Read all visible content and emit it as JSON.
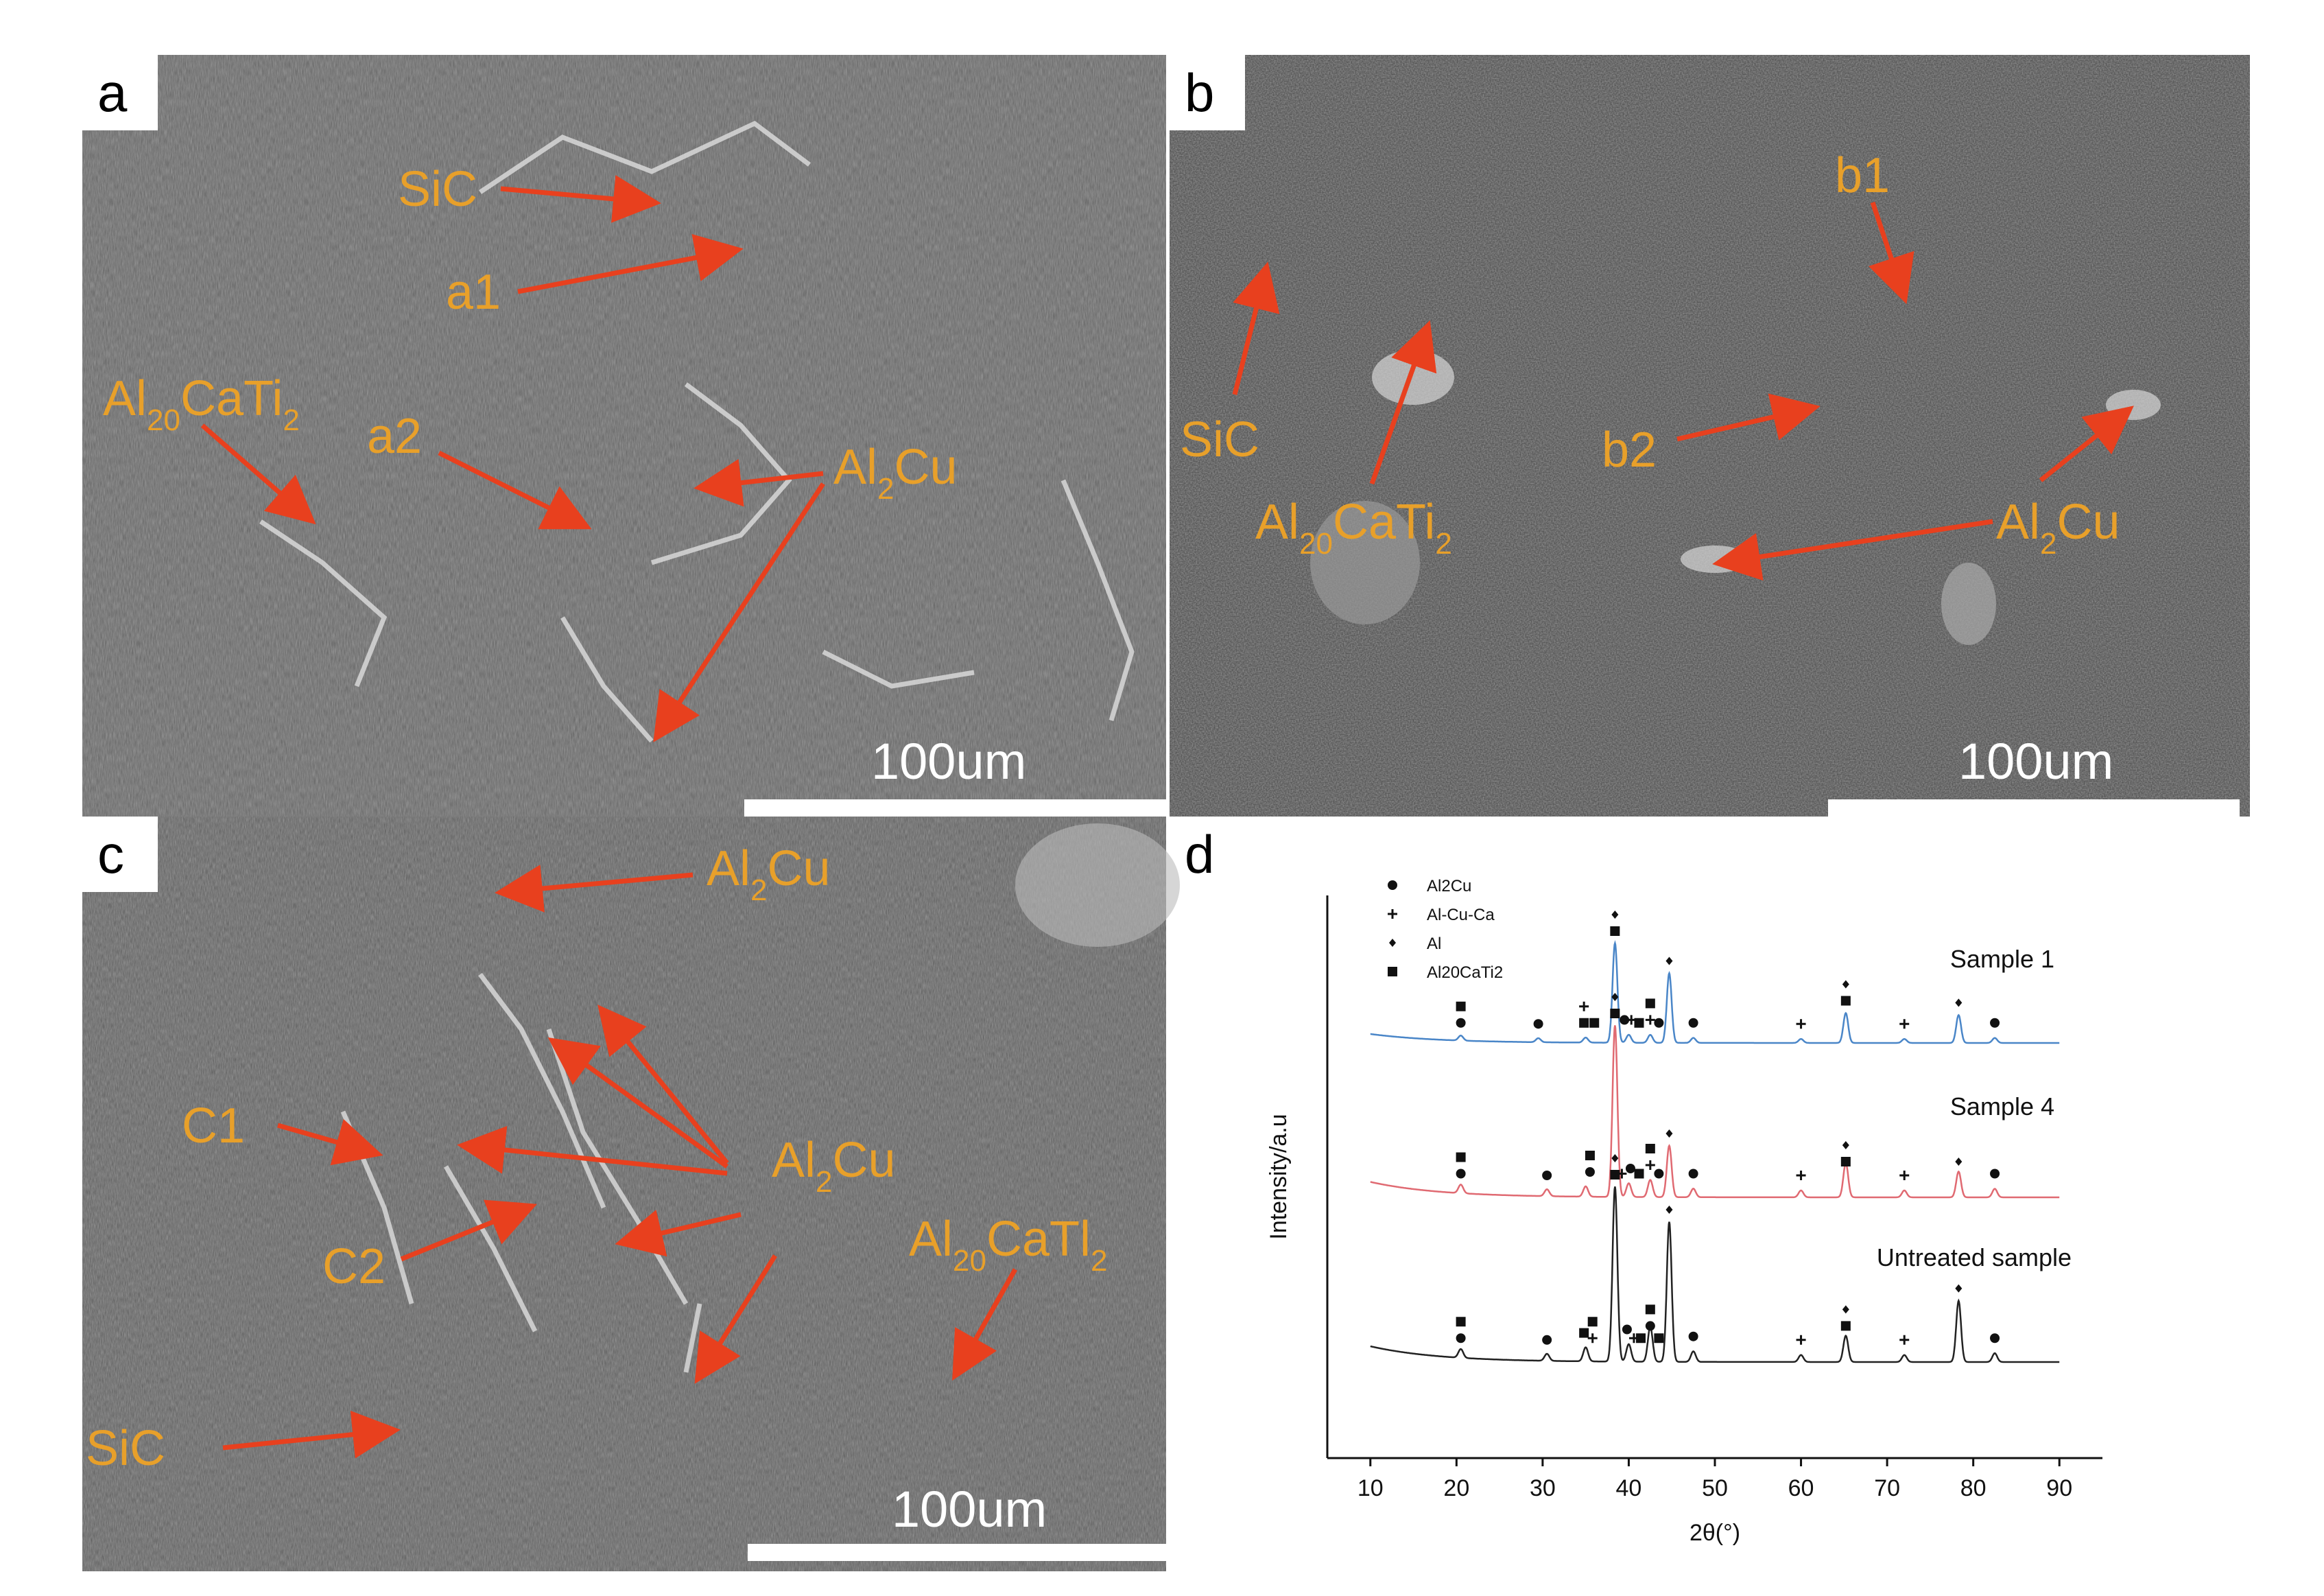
{
  "panels": {
    "a": {
      "letter": "a",
      "scale_bar": "100um",
      "labels": {
        "sic": "SiC",
        "a1": "a1",
        "a2": "a2",
        "al20_main": "Al",
        "al20_sub": "20",
        "al20_tail": "CaTi",
        "al20_sub2": "2",
        "al2cu_main": "Al",
        "al2cu_sub": "2",
        "al2cu_tail": "Cu"
      }
    },
    "b": {
      "letter": "b",
      "scale_bar": "100um",
      "labels": {
        "sic": "SiC",
        "b1": "b1",
        "b2": "b2",
        "al20_main": "Al",
        "al20_sub": "20",
        "al20_tail": "CaTi",
        "al20_sub2": "2",
        "al2cu_main": "Al",
        "al2cu_sub": "2",
        "al2cu_tail": "Cu"
      }
    },
    "c": {
      "letter": "c",
      "scale_bar": "100um",
      "labels": {
        "sic": "SiC",
        "c1": "C1",
        "c2": "C2",
        "al2cu_top_main": "Al",
        "al2cu_top_sub": "2",
        "al2cu_top_tail": "Cu",
        "al2cu_mid_main": "Al",
        "al2cu_mid_sub": "2",
        "al2cu_mid_tail": "Cu",
        "al20_main": "Al",
        "al20_sub": "20",
        "al20_tail": "CaTl",
        "al20_sub2": "2"
      }
    },
    "d": {
      "letter": "d"
    }
  },
  "colors": {
    "annotation": "#E8A02A",
    "arrow": "#E8401E",
    "sample1": "#4A86C8",
    "sample4": "#E06A72",
    "untreated": "#222222"
  },
  "chart_data": {
    "type": "line",
    "xlabel": "2θ(°)",
    "ylabel": "Intensity/a.u",
    "xlim": [
      5,
      95
    ],
    "xticks": [
      10,
      20,
      30,
      40,
      50,
      60,
      70,
      80,
      90
    ],
    "legend": {
      "placement": "top-left",
      "entries": [
        {
          "marker": "circle",
          "label": "Al2Cu"
        },
        {
          "marker": "cross",
          "label": "Al-Cu-Ca"
        },
        {
          "marker": "diamond",
          "label": "Al"
        },
        {
          "marker": "square",
          "label": "Al20CaTi2"
        }
      ]
    },
    "series": [
      {
        "name": "Sample 1",
        "offset": 2.0,
        "peaks": [
          [
            20.5,
            0.05
          ],
          [
            29.5,
            0.04
          ],
          [
            35,
            0.05
          ],
          [
            38.4,
            1.0
          ],
          [
            40,
            0.08
          ],
          [
            42.5,
            0.08
          ],
          [
            44.7,
            0.7
          ],
          [
            47.5,
            0.05
          ],
          [
            60,
            0.04
          ],
          [
            65.2,
            0.3
          ],
          [
            72,
            0.04
          ],
          [
            78.3,
            0.28
          ],
          [
            82.5,
            0.05
          ]
        ]
      },
      {
        "name": "Sample 4",
        "offset": 1.0,
        "peaks": [
          [
            20.5,
            0.05
          ],
          [
            30.5,
            0.04
          ],
          [
            35,
            0.06
          ],
          [
            38.4,
            1.0
          ],
          [
            40,
            0.08
          ],
          [
            42.5,
            0.1
          ],
          [
            44.7,
            0.3
          ],
          [
            47.5,
            0.05
          ],
          [
            60,
            0.04
          ],
          [
            65.2,
            0.2
          ],
          [
            72,
            0.04
          ],
          [
            78.3,
            0.15
          ],
          [
            82.5,
            0.05
          ]
        ]
      },
      {
        "name": "Untreated sample",
        "offset": 0.0,
        "peaks": [
          [
            20.5,
            0.05
          ],
          [
            30.5,
            0.04
          ],
          [
            35,
            0.08
          ],
          [
            38.4,
            1.0
          ],
          [
            40,
            0.1
          ],
          [
            42.5,
            0.2
          ],
          [
            44.7,
            0.8
          ],
          [
            47.5,
            0.06
          ],
          [
            60,
            0.04
          ],
          [
            65.2,
            0.15
          ],
          [
            72,
            0.04
          ],
          [
            78.3,
            0.35
          ],
          [
            82.5,
            0.05
          ]
        ]
      }
    ],
    "markers": [
      {
        "series": 0,
        "x": 20.5,
        "symbols": [
          "circle",
          "square"
        ]
      },
      {
        "series": 0,
        "x": 29.5,
        "symbols": [
          "circle"
        ]
      },
      {
        "series": 0,
        "x": 34.8,
        "symbols": [
          "square",
          "cross"
        ]
      },
      {
        "series": 0,
        "x": 36.0,
        "symbols": [
          "square"
        ]
      },
      {
        "series": 0,
        "x": 38.4,
        "symbols": [
          "square",
          "diamond"
        ]
      },
      {
        "series": 0,
        "x": 39.5,
        "symbols": [
          "circle"
        ]
      },
      {
        "series": 0,
        "x": 40.3,
        "symbols": [
          "cross"
        ]
      },
      {
        "series": 0,
        "x": 41.2,
        "symbols": [
          "square"
        ]
      },
      {
        "series": 0,
        "x": 42.5,
        "symbols": [
          "cross",
          "square"
        ]
      },
      {
        "series": 0,
        "x": 43.5,
        "symbols": [
          "circle"
        ]
      },
      {
        "series": 0,
        "x": 44.7,
        "symbols": [
          "diamond"
        ]
      },
      {
        "series": 0,
        "x": 47.5,
        "symbols": [
          "circle"
        ]
      },
      {
        "series": 0,
        "x": 60.0,
        "symbols": [
          "cross"
        ]
      },
      {
        "series": 0,
        "x": 65.2,
        "symbols": [
          "square",
          "diamond"
        ]
      },
      {
        "series": 0,
        "x": 72.0,
        "symbols": [
          "cross"
        ]
      },
      {
        "series": 0,
        "x": 78.3,
        "symbols": [
          "diamond"
        ]
      },
      {
        "series": 0,
        "x": 82.5,
        "symbols": [
          "circle"
        ]
      },
      {
        "series": 1,
        "x": 20.5,
        "symbols": [
          "circle",
          "square"
        ]
      },
      {
        "series": 1,
        "x": 30.5,
        "symbols": [
          "circle"
        ]
      },
      {
        "series": 1,
        "x": 35.5,
        "symbols": [
          "circle",
          "square"
        ]
      },
      {
        "series": 1,
        "x": 38.4,
        "symbols": [
          "square",
          "diamond"
        ]
      },
      {
        "series": 1,
        "x": 39.2,
        "symbols": [
          "cross"
        ]
      },
      {
        "series": 1,
        "x": 40.2,
        "symbols": [
          "circle"
        ]
      },
      {
        "series": 1,
        "x": 41.2,
        "symbols": [
          "square"
        ]
      },
      {
        "series": 1,
        "x": 42.5,
        "symbols": [
          "cross",
          "square"
        ]
      },
      {
        "series": 1,
        "x": 43.5,
        "symbols": [
          "circle"
        ]
      },
      {
        "series": 1,
        "x": 44.7,
        "symbols": [
          "diamond"
        ]
      },
      {
        "series": 1,
        "x": 47.5,
        "symbols": [
          "circle"
        ]
      },
      {
        "series": 1,
        "x": 60.0,
        "symbols": [
          "cross"
        ]
      },
      {
        "series": 1,
        "x": 65.2,
        "symbols": [
          "square",
          "diamond"
        ]
      },
      {
        "series": 1,
        "x": 72.0,
        "symbols": [
          "cross"
        ]
      },
      {
        "series": 1,
        "x": 78.3,
        "symbols": [
          "diamond"
        ]
      },
      {
        "series": 1,
        "x": 82.5,
        "symbols": [
          "circle"
        ]
      },
      {
        "series": 2,
        "x": 20.5,
        "symbols": [
          "circle",
          "square"
        ]
      },
      {
        "series": 2,
        "x": 30.5,
        "symbols": [
          "circle"
        ]
      },
      {
        "series": 2,
        "x": 34.8,
        "symbols": [
          "square"
        ]
      },
      {
        "series": 2,
        "x": 35.8,
        "symbols": [
          "cross",
          "square"
        ]
      },
      {
        "series": 2,
        "x": 38.4,
        "symbols": [
          "square",
          "diamond"
        ]
      },
      {
        "series": 2,
        "x": 39.8,
        "symbols": [
          "circle"
        ]
      },
      {
        "series": 2,
        "x": 40.6,
        "symbols": [
          "cross"
        ]
      },
      {
        "series": 2,
        "x": 41.4,
        "symbols": [
          "square"
        ]
      },
      {
        "series": 2,
        "x": 42.5,
        "symbols": [
          "circle",
          "square"
        ]
      },
      {
        "series": 2,
        "x": 43.5,
        "symbols": [
          "square"
        ]
      },
      {
        "series": 2,
        "x": 44.7,
        "symbols": [
          "diamond"
        ]
      },
      {
        "series": 2,
        "x": 47.5,
        "symbols": [
          "circle"
        ]
      },
      {
        "series": 2,
        "x": 60.0,
        "symbols": [
          "cross"
        ]
      },
      {
        "series": 2,
        "x": 65.2,
        "symbols": [
          "square",
          "diamond"
        ]
      },
      {
        "series": 2,
        "x": 72.0,
        "symbols": [
          "cross"
        ]
      },
      {
        "series": 2,
        "x": 78.3,
        "symbols": [
          "diamond"
        ]
      },
      {
        "series": 2,
        "x": 82.5,
        "symbols": [
          "circle"
        ]
      }
    ]
  }
}
